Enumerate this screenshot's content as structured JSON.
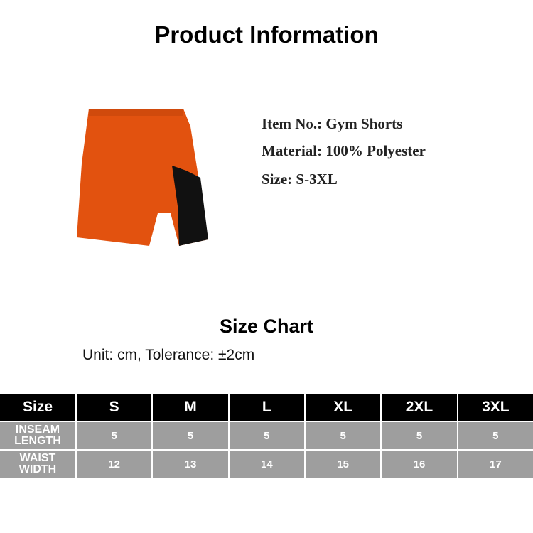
{
  "title": "Product Information",
  "product": {
    "item": "Item No.: Gym Shorts",
    "material": "Material: 100% Polyester",
    "size": "Size: S-3XL",
    "image": "gym-shorts-orange-black",
    "colors": {
      "main": "#e2520f",
      "panel": "#111111"
    }
  },
  "size_chart": {
    "title": "Size Chart",
    "unit": "Unit: cm, Tolerance: ±2cm",
    "headers": [
      "Size",
      "S",
      "M",
      "L",
      "XL",
      "2XL",
      "3XL"
    ],
    "rows": [
      {
        "label": [
          "INSEAM",
          "LENGTH"
        ],
        "values": [
          "5",
          "5",
          "5",
          "5",
          "5",
          "5"
        ]
      },
      {
        "label": [
          "WAIST",
          "WIDTH"
        ],
        "values": [
          "12",
          "13",
          "14",
          "15",
          "16",
          "17"
        ]
      }
    ]
  }
}
